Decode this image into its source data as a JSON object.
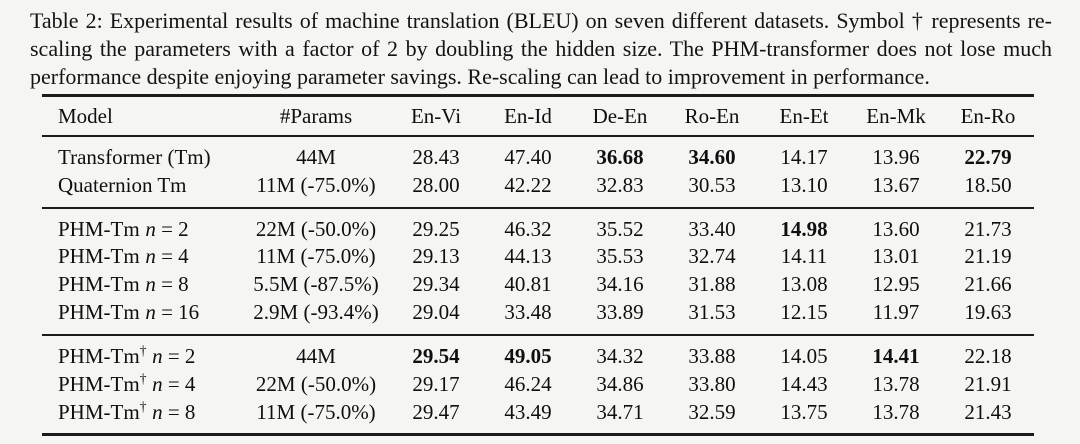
{
  "caption": {
    "text": "Table 2: Experimental results of machine translation (BLEU) on seven different datasets. Symbol † represents re-scaling the parameters with a factor of 2 by doubling the hidden size. The PHM-transformer does not lose much performance despite enjoying parameter savings. Re-scaling can lead to improvement in performance."
  },
  "table": {
    "headers": [
      "Model",
      "#Params",
      "En-Vi",
      "En-Id",
      "De-En",
      "Ro-En",
      "En-Et",
      "En-Mk",
      "En-Ro"
    ],
    "sections": [
      {
        "rows": [
          {
            "base": "Transformer (Tm)",
            "dagger": "",
            "nvar": "",
            "eq": "",
            "params": "44M",
            "vals": [
              "28.43",
              "47.40",
              "36.68",
              "34.60",
              "14.17",
              "13.96",
              "22.79"
            ]
          },
          {
            "base": "Quaternion Tm",
            "dagger": "",
            "nvar": "",
            "eq": "",
            "params": "11M (-75.0%)",
            "vals": [
              "28.00",
              "42.22",
              "32.83",
              "30.53",
              "13.10",
              "13.67",
              "18.50"
            ]
          }
        ]
      },
      {
        "rows": [
          {
            "base": "PHM-Tm",
            "dagger": "",
            "nvar": "n",
            "eq": " = 2",
            "params": "22M (-50.0%)",
            "vals": [
              "29.25",
              "46.32",
              "35.52",
              "33.40",
              "14.98",
              "13.60",
              "21.73"
            ]
          },
          {
            "base": "PHM-Tm",
            "dagger": "",
            "nvar": "n",
            "eq": " = 4",
            "params": "11M (-75.0%)",
            "vals": [
              "29.13",
              "44.13",
              "35.53",
              "32.74",
              "14.11",
              "13.01",
              "21.19"
            ]
          },
          {
            "base": "PHM-Tm",
            "dagger": "",
            "nvar": "n",
            "eq": " = 8",
            "params": "5.5M (-87.5%)",
            "vals": [
              "29.34",
              "40.81",
              "34.16",
              "31.88",
              "13.08",
              "12.95",
              "21.66"
            ]
          },
          {
            "base": "PHM-Tm",
            "dagger": "",
            "nvar": "n",
            "eq": " = 16",
            "params": "2.9M (-93.4%)",
            "vals": [
              "29.04",
              "33.48",
              "33.89",
              "31.53",
              "12.15",
              "11.97",
              "19.63"
            ]
          }
        ]
      },
      {
        "rows": [
          {
            "base": "PHM-Tm",
            "dagger": "†",
            "nvar": "n",
            "eq": " = 2",
            "params": "44M",
            "vals": [
              "29.54",
              "49.05",
              "34.32",
              "33.88",
              "14.05",
              "14.41",
              "22.18"
            ]
          },
          {
            "base": "PHM-Tm",
            "dagger": "†",
            "nvar": "n",
            "eq": " = 4",
            "params": "22M (-50.0%)",
            "vals": [
              "29.17",
              "46.24",
              "34.86",
              "33.80",
              "14.43",
              "13.78",
              "21.91"
            ]
          },
          {
            "base": "PHM-Tm",
            "dagger": "†",
            "nvar": "n",
            "eq": " = 8",
            "params": "11M (-75.0%)",
            "vals": [
              "29.47",
              "43.49",
              "34.71",
              "32.59",
              "13.75",
              "13.78",
              "21.43"
            ]
          }
        ]
      }
    ]
  }
}
